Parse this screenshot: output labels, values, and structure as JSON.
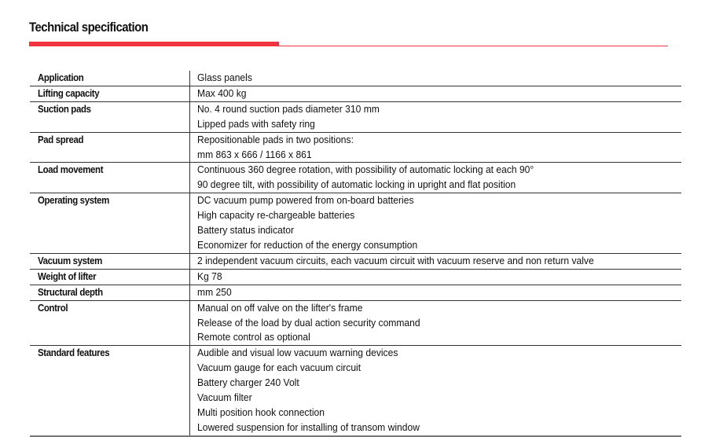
{
  "title": "Technical specification",
  "accent_color": "#f0333f",
  "rows": [
    {
      "label": "Application",
      "values": [
        "Glass panels"
      ]
    },
    {
      "label": "Lifting capacity",
      "values": [
        "Max 400 kg"
      ]
    },
    {
      "label": "Suction pads",
      "values": [
        "No. 4 round suction pads diameter 310 mm",
        "Lipped pads with safety ring"
      ]
    },
    {
      "label": "Pad spread",
      "values": [
        "Repositionable pads in two positions:",
        "mm 863 x 666 / 1166 x 861"
      ]
    },
    {
      "label": "Load movement",
      "values": [
        "Continuous 360 degree rotation, with possibility of automatic locking at each 90°",
        "90 degree tilt, with possibility of automatic locking in upright and flat position"
      ]
    },
    {
      "label": "Operating system",
      "values": [
        "DC vacuum pump powered from on-board batteries",
        "High capacity re-chargeable batteries",
        "Battery status indicator",
        "Economizer for reduction of the energy consumption"
      ]
    },
    {
      "label": "Vacuum system",
      "values": [
        "2 independent vacuum circuits, each vacuum circuit with vacuum reserve and non return valve"
      ]
    },
    {
      "label": "Weight of lifter",
      "values": [
        "Kg 78"
      ]
    },
    {
      "label": "Structural depth",
      "values": [
        "mm 250"
      ]
    },
    {
      "label": "Control",
      "values": [
        "Manual on off valve on the lifter's frame",
        "Release of the load by dual action security command",
        "Remote control as optional"
      ]
    },
    {
      "label": "Standard features",
      "values": [
        "Audible and visual low vacuum warning devices",
        "Vacuum gauge for each vacuum circuit",
        "Battery charger 240 Volt",
        "Vacuum filter",
        "Multi position hook connection",
        "Lowered suspension for installing of transom window"
      ]
    }
  ]
}
